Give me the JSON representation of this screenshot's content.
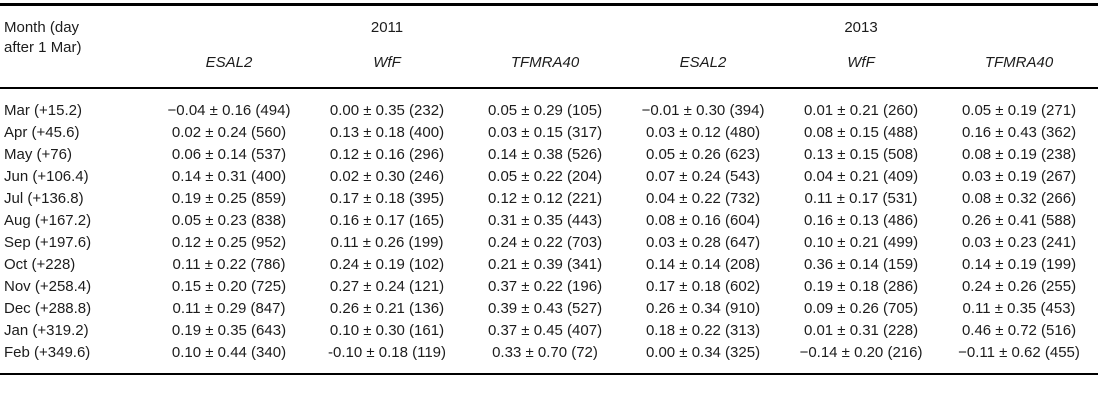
{
  "colors": {
    "background": "#ffffff",
    "text": "#1c1c1c",
    "rule": "#000000"
  },
  "table": {
    "row_header": {
      "line1": "Month (day",
      "line2": "after 1 Mar)"
    },
    "groups": [
      {
        "year": "2011",
        "columns": [
          "ESAL2",
          "WfF",
          "TFMRA40"
        ]
      },
      {
        "year": "2013",
        "columns": [
          "ESAL2",
          "WfF",
          "TFMRA40"
        ]
      }
    ],
    "rows": [
      {
        "month": "Mar (+15.2)",
        "values": [
          "−0.04 ± 0.16 (494)",
          "0.00 ± 0.35 (232)",
          "0.05 ± 0.29 (105)",
          "−0.01 ± 0.30 (394)",
          "0.01 ± 0.21 (260)",
          "0.05 ± 0.19 (271)"
        ]
      },
      {
        "month": "Apr (+45.6)",
        "values": [
          "0.02 ± 0.24 (560)",
          "0.13 ± 0.18 (400)",
          "0.03 ± 0.15 (317)",
          "0.03 ± 0.12 (480)",
          "0.08 ± 0.15 (488)",
          "0.16 ± 0.43 (362)"
        ]
      },
      {
        "month": "May (+76)",
        "values": [
          "0.06 ± 0.14 (537)",
          "0.12 ± 0.16 (296)",
          "0.14 ± 0.38 (526)",
          "0.05 ± 0.26 (623)",
          "0.13 ± 0.15 (508)",
          "0.08 ± 0.19 (238)"
        ]
      },
      {
        "month": "Jun (+106.4)",
        "values": [
          "0.14 ± 0.31 (400)",
          "0.02 ± 0.30 (246)",
          "0.05 ± 0.22 (204)",
          "0.07 ± 0.24 (543)",
          "0.04 ± 0.21 (409)",
          "0.03 ± 0.19 (267)"
        ]
      },
      {
        "month": "Jul (+136.8)",
        "values": [
          "0.19 ± 0.25 (859)",
          "0.17 ± 0.18 (395)",
          "0.12 ± 0.12 (221)",
          "0.04 ± 0.22 (732)",
          "0.11 ± 0.17 (531)",
          "0.08 ± 0.32 (266)"
        ]
      },
      {
        "month": "Aug (+167.2)",
        "values": [
          "0.05 ± 0.23 (838)",
          "0.16 ± 0.17 (165)",
          "0.31 ± 0.35 (443)",
          "0.08 ± 0.16 (604)",
          "0.16 ± 0.13 (486)",
          "0.26 ± 0.41 (588)"
        ]
      },
      {
        "month": "Sep (+197.6)",
        "values": [
          "0.12 ± 0.25 (952)",
          "0.11 ± 0.26 (199)",
          "0.24 ± 0.22 (703)",
          "0.03 ± 0.28 (647)",
          "0.10 ± 0.21 (499)",
          "0.03 ± 0.23 (241)"
        ]
      },
      {
        "month": "Oct (+228)",
        "values": [
          "0.11 ± 0.22 (786)",
          "0.24 ± 0.19 (102)",
          "0.21 ± 0.39 (341)",
          "0.14 ± 0.14 (208)",
          "0.36 ± 0.14 (159)",
          "0.14 ± 0.19 (199)"
        ]
      },
      {
        "month": "Nov (+258.4)",
        "values": [
          "0.15 ± 0.20 (725)",
          "0.27 ± 0.24 (121)",
          "0.37 ± 0.22 (196)",
          "0.17 ± 0.18 (602)",
          "0.19 ± 0.18 (286)",
          "0.24 ± 0.26 (255)"
        ]
      },
      {
        "month": "Dec (+288.8)",
        "values": [
          "0.11 ± 0.29 (847)",
          "0.26 ± 0.21 (136)",
          "0.39 ± 0.43 (527)",
          "0.26 ± 0.34 (910)",
          "0.09 ± 0.26 (705)",
          "0.11 ± 0.35 (453)"
        ]
      },
      {
        "month": "Jan (+319.2)",
        "values": [
          "0.19 ± 0.35 (643)",
          "0.10 ± 0.30 (161)",
          "0.37 ± 0.45 (407)",
          "0.18 ± 0.22 (313)",
          "0.01 ± 0.31 (228)",
          "0.46 ± 0.72 (516)"
        ]
      },
      {
        "month": "Feb (+349.6)",
        "values": [
          "0.10 ± 0.44 (340)",
          "-0.10 ± 0.18 (119)",
          "0.33 ± 0.70 (72)",
          "0.00 ± 0.34 (325)",
          "−0.14 ± 0.20 (216)",
          "−0.11 ± 0.62 (455)"
        ]
      }
    ]
  }
}
